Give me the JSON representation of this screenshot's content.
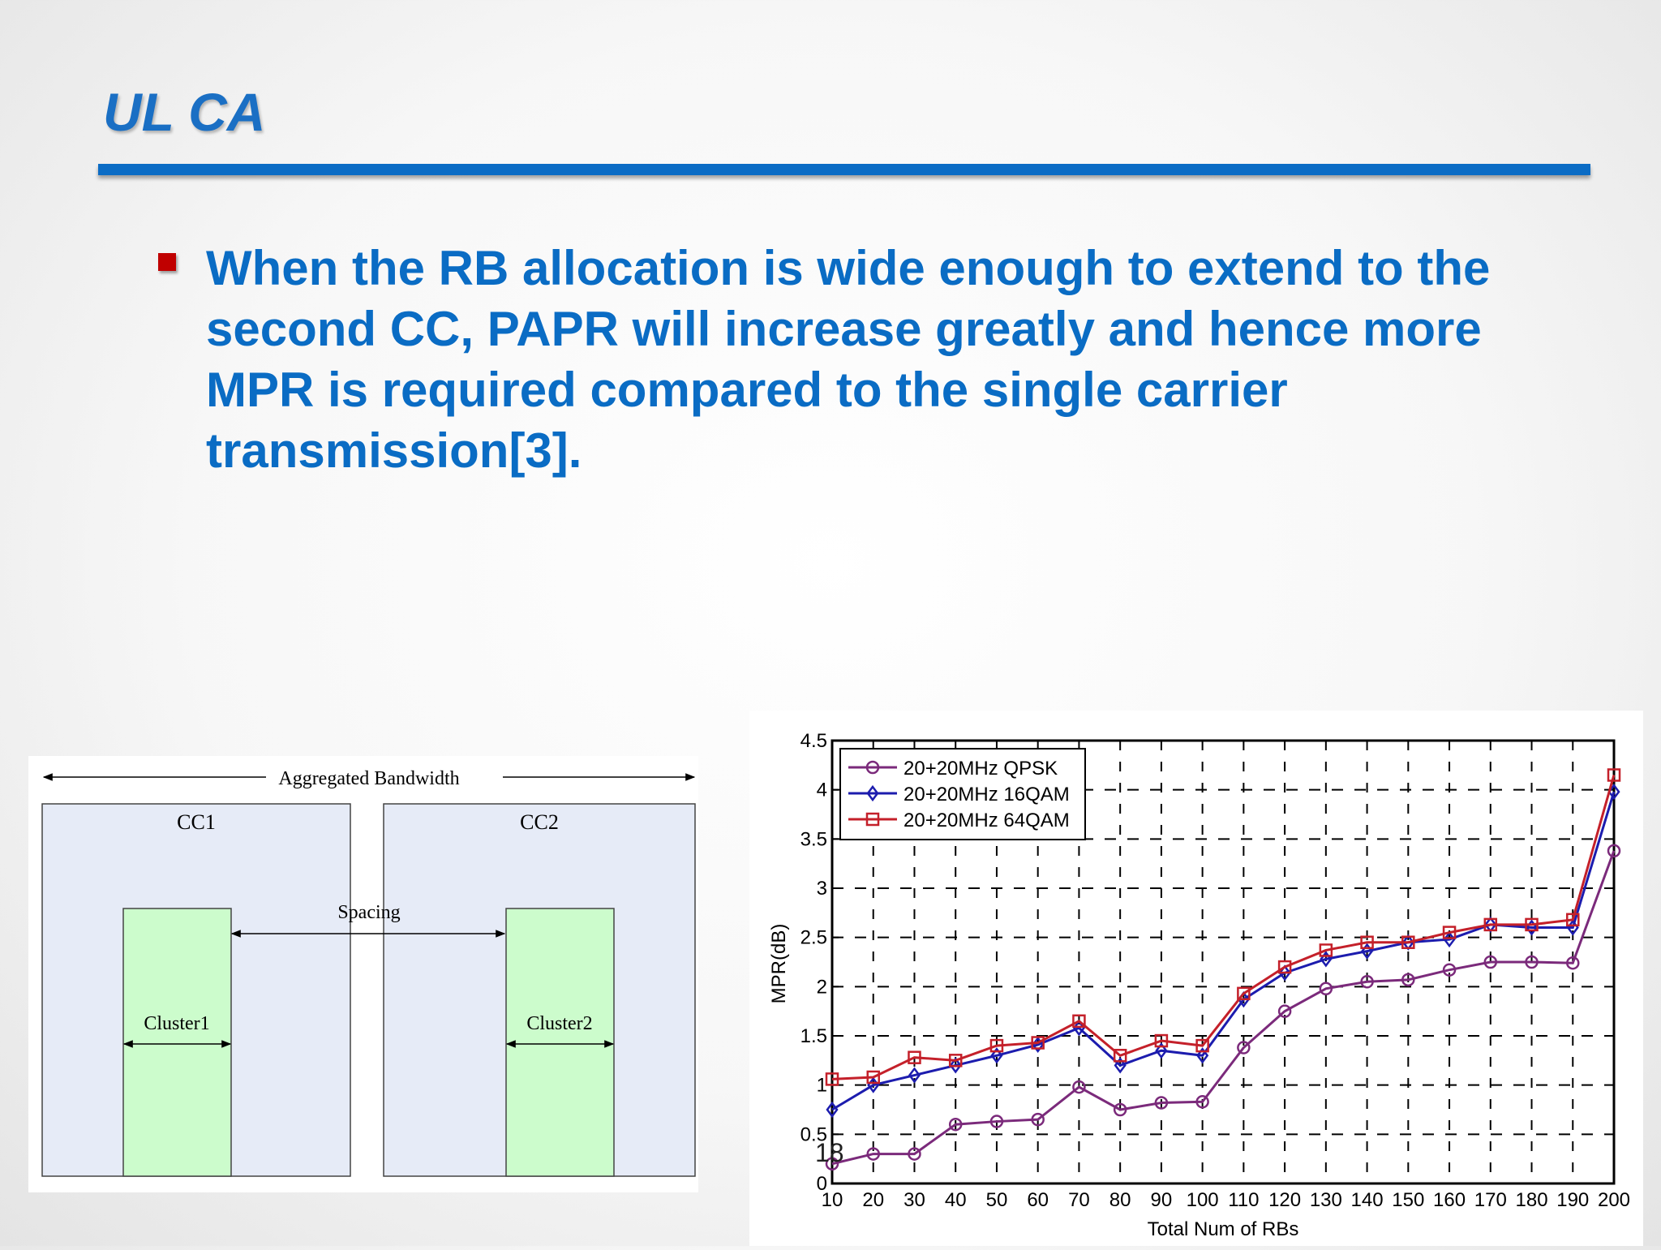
{
  "slide": {
    "title": "UL CA",
    "bullet_text": "When the RB allocation is wide enough to extend to the second CC, PAPR will increase greatly and hence more MPR is required compared to the single carrier transmission[3].",
    "page_number": "18",
    "colors": {
      "title": "#1a6fc4",
      "rule": "#0b6cc5",
      "bullet_marker": "#c00000",
      "body_text": "#0a6cc4"
    }
  },
  "diagram": {
    "aggregated_label": "Aggregated Bandwidth",
    "cc1_label": "CC1",
    "cc2_label": "CC2",
    "spacing_label": "Spacing",
    "cluster1_label": "Cluster1",
    "cluster2_label": "Cluster2",
    "colors": {
      "cc_fill": "#e6ebf7",
      "cluster_fill": "#ccfccc"
    }
  },
  "chart_data": {
    "type": "line",
    "title": "",
    "xlabel": "Total Num of RBs",
    "ylabel": "MPR(dB)",
    "x": [
      10,
      20,
      30,
      40,
      50,
      60,
      70,
      80,
      90,
      100,
      110,
      120,
      130,
      140,
      150,
      160,
      170,
      180,
      190,
      200
    ],
    "ylim": [
      0,
      4.5
    ],
    "yticks": [
      "0",
      "0.5",
      "1",
      "1.5",
      "2",
      "2.5",
      "3",
      "3.5",
      "4",
      "4.5"
    ],
    "grid": "on (dashed)",
    "legend_position": "top-left",
    "series": [
      {
        "name": "20+20MHz QPSK",
        "color": "#7b2a7b",
        "marker": "circle",
        "values": [
          0.2,
          0.3,
          0.3,
          0.6,
          0.63,
          0.65,
          0.98,
          0.75,
          0.82,
          0.83,
          1.38,
          1.75,
          1.98,
          2.05,
          2.07,
          2.17,
          2.25,
          2.25,
          2.24,
          3.38
        ]
      },
      {
        "name": "20+20MHz 16QAM",
        "color": "#1c1cae",
        "marker": "diamond",
        "values": [
          0.75,
          1.0,
          1.1,
          1.2,
          1.3,
          1.41,
          1.58,
          1.2,
          1.35,
          1.3,
          1.87,
          2.14,
          2.28,
          2.36,
          2.45,
          2.48,
          2.63,
          2.6,
          2.6,
          3.98
        ]
      },
      {
        "name": "20+20MHz 64QAM",
        "color": "#c4202a",
        "marker": "square",
        "values": [
          1.06,
          1.08,
          1.28,
          1.25,
          1.4,
          1.43,
          1.65,
          1.3,
          1.45,
          1.4,
          1.93,
          2.2,
          2.37,
          2.45,
          2.45,
          2.55,
          2.63,
          2.63,
          2.68,
          4.15
        ]
      }
    ]
  }
}
